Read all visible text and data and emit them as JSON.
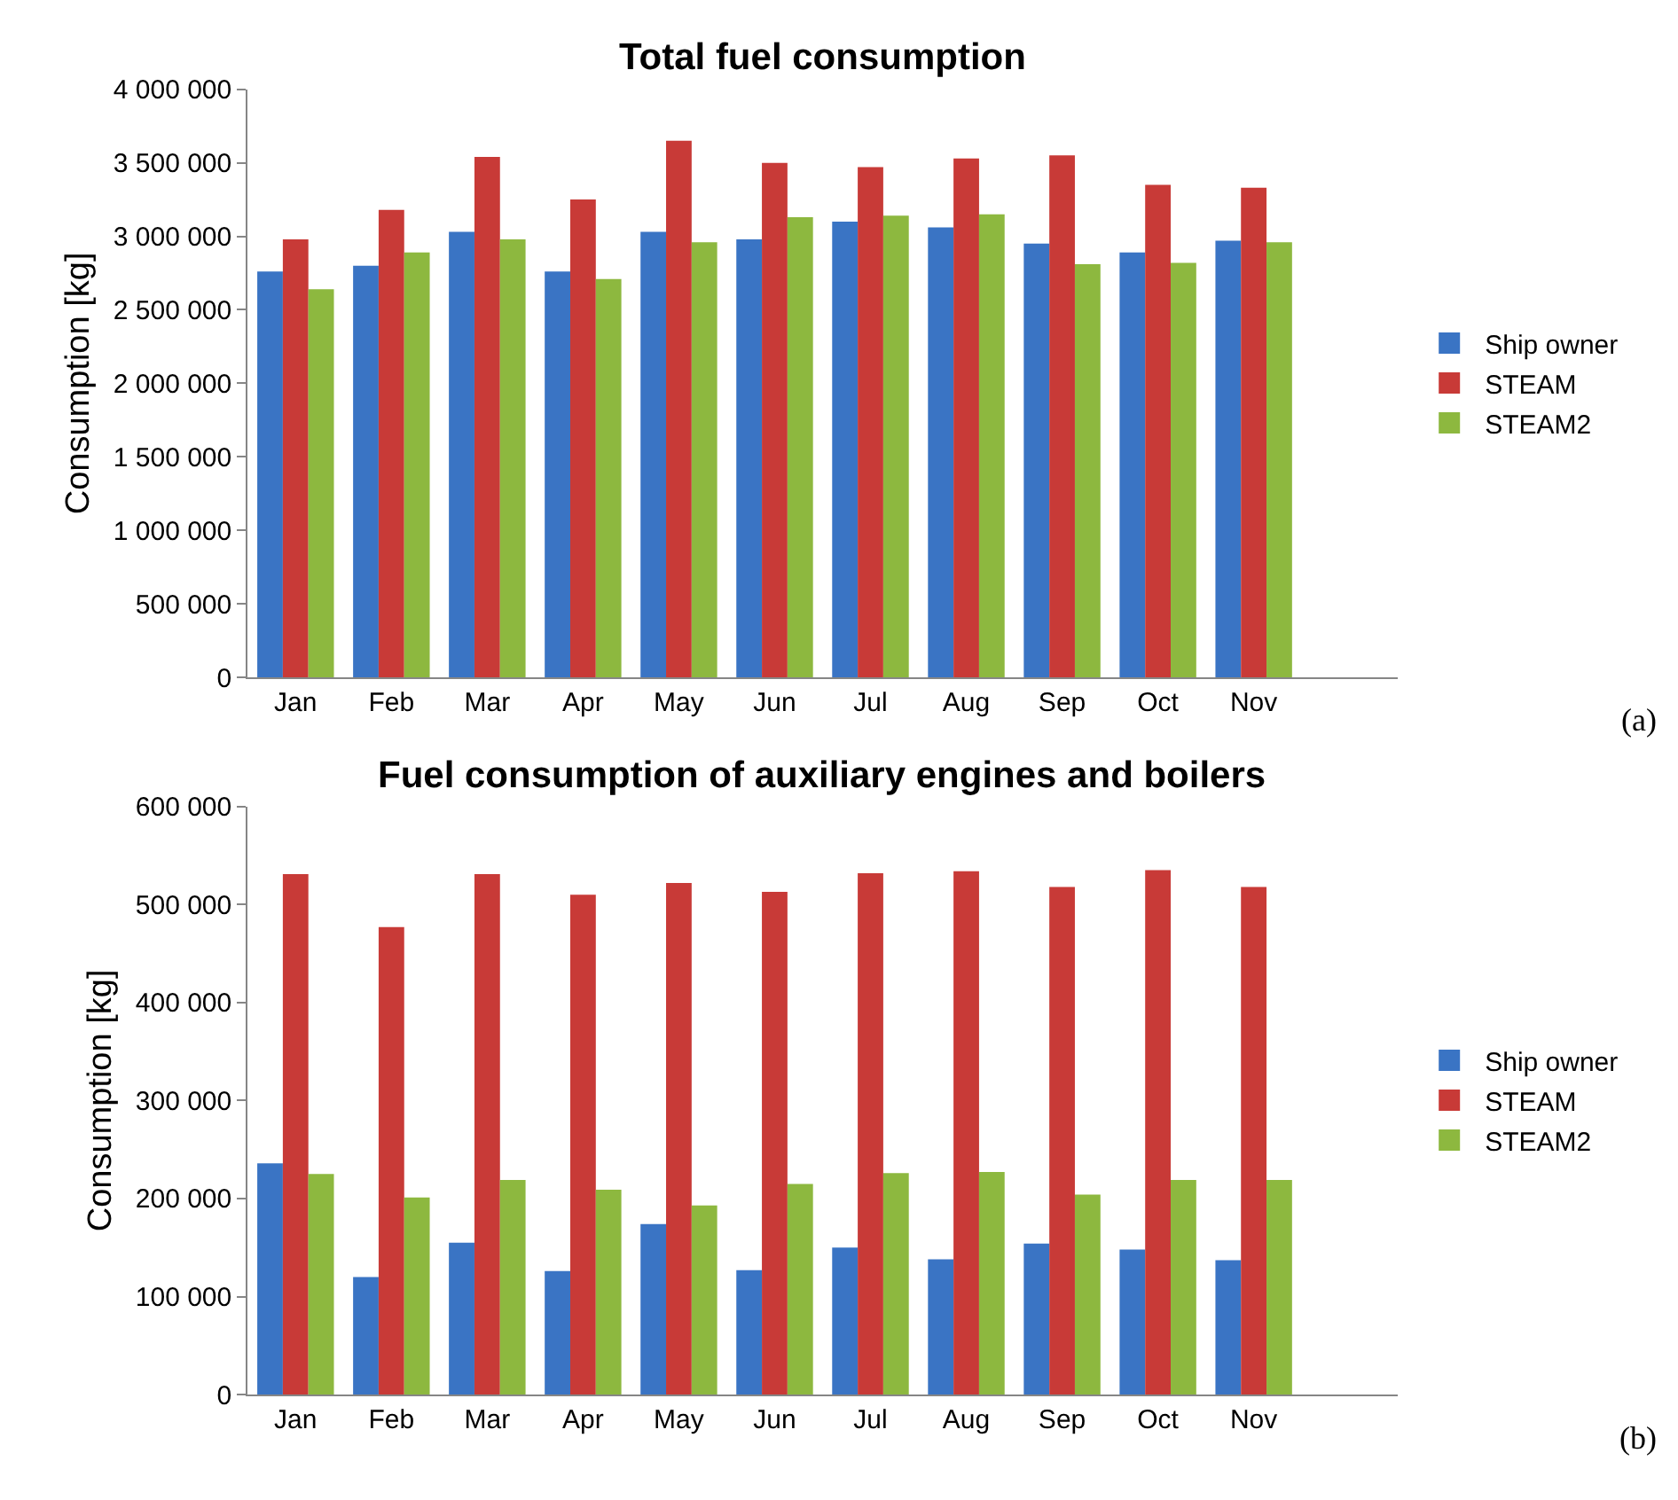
{
  "chart_data": [
    {
      "type": "bar",
      "title": "Total fuel consumption",
      "ylabel": "Consumption [kg]",
      "categories": [
        "Jan",
        "Feb",
        "Mar",
        "Apr",
        "May",
        "Jun",
        "Jul",
        "Aug",
        "Sep",
        "Oct",
        "Nov",
        null
      ],
      "series": [
        {
          "name": "Ship owner",
          "color": "#3a74c4",
          "values": [
            2760000,
            2800000,
            3030000,
            2760000,
            3030000,
            2980000,
            3100000,
            3060000,
            2950000,
            2890000,
            2970000,
            null
          ]
        },
        {
          "name": "STEAM",
          "color": "#c83a37",
          "values": [
            2980000,
            3180000,
            3540000,
            3250000,
            3650000,
            3500000,
            3470000,
            3530000,
            3550000,
            3350000,
            3330000,
            null
          ]
        },
        {
          "name": "STEAM2",
          "color": "#8db83f",
          "values": [
            2640000,
            2890000,
            2980000,
            2710000,
            2960000,
            3130000,
            3140000,
            3150000,
            2810000,
            2820000,
            2960000,
            null
          ]
        }
      ],
      "ylim": [
        0,
        4000000
      ],
      "yticks": [
        0,
        {
          "value": 500000,
          "label": "500 000"
        },
        {
          "value": 1000000,
          "label": "1 000 000"
        },
        {
          "value": 1500000,
          "label": "1 500 000"
        },
        {
          "value": 2000000,
          "label": "2 000 000"
        },
        {
          "value": 2500000,
          "label": "2 500 000"
        },
        {
          "value": 3000000,
          "label": "3 000 000"
        },
        {
          "value": 3500000,
          "label": "3 500 000"
        },
        {
          "value": 4000000,
          "label": "4 000 000"
        }
      ],
      "legend": "right",
      "annotations": [
        "(a)"
      ]
    },
    {
      "type": "bar",
      "title": "Fuel consumption of auxiliary engines and boilers",
      "ylabel": "Consumption [kg]",
      "categories": [
        "Jan",
        "Feb",
        "Mar",
        "Apr",
        "May",
        "Jun",
        "Jul",
        "Aug",
        "Sep",
        "Oct",
        "Nov",
        null
      ],
      "series": [
        {
          "name": "Ship owner",
          "color": "#3a74c4",
          "values": [
            236000,
            120000,
            155000,
            126000,
            174000,
            127000,
            150000,
            138000,
            154000,
            148000,
            137000,
            null
          ]
        },
        {
          "name": "STEAM",
          "color": "#c83a37",
          "values": [
            531000,
            477000,
            531000,
            510000,
            522000,
            513000,
            532000,
            534000,
            518000,
            535000,
            518000,
            null
          ]
        },
        {
          "name": "STEAM2",
          "color": "#8db83f",
          "values": [
            225000,
            201000,
            219000,
            209000,
            193000,
            215000,
            226000,
            227000,
            204000,
            219000,
            219000,
            null
          ]
        }
      ],
      "ylim": [
        0,
        600000
      ],
      "yticks": [
        0,
        {
          "value": 100000,
          "label": "100 000"
        },
        {
          "value": 200000,
          "label": "200 000"
        },
        {
          "value": 300000,
          "label": "300 000"
        },
        {
          "value": 400000,
          "label": "400 000"
        },
        {
          "value": 500000,
          "label": "500 000"
        },
        {
          "value": 600000,
          "label": "600 000"
        }
      ],
      "legend": "right",
      "annotations": [
        "(b)"
      ]
    }
  ]
}
